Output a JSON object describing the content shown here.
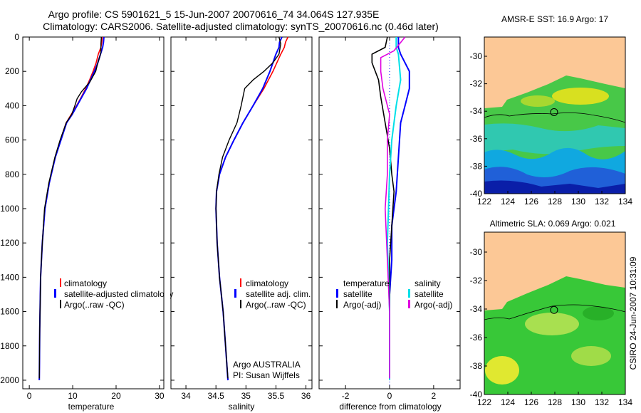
{
  "title_line1": "Argo profile: CS 5901621_5 15-Jun-2007 20070616_74 34.064S 127.935E",
  "title_line2": "Climatology: CARS2006. Satellite-adjusted climatology: synTS_20070616.nc (0.46d later)",
  "credit": "CSIRO 24-Jun-2007 10:31:09",
  "colors": {
    "climatology": "#ff0000",
    "satellite": "#0000ff",
    "argo": "#000000",
    "sat_sal": "#00e0e8",
    "argo_sal": "#e000e0",
    "land": "#fcc896"
  },
  "chart_data": [
    {
      "id": "temperature",
      "type": "line",
      "xlabel": "temperature",
      "xlim": [
        -1.5,
        31
      ],
      "ylim": [
        2050,
        0
      ],
      "xticks": [
        "0",
        "10",
        "20",
        "30"
      ],
      "yticks": [
        "0",
        "200",
        "400",
        "600",
        "800",
        "1000",
        "1200",
        "1400",
        "1600",
        "1800",
        "2000"
      ],
      "legend": [
        "climatology",
        "satellite-adjusted climatology",
        "Argo(..raw -QC)"
      ],
      "series": [
        {
          "name": "climatology",
          "x": [
            16.8,
            16.7,
            16.5,
            15.9,
            15.4,
            14.7,
            13.9,
            13.0,
            12.0,
            10.9,
            9.7,
            8.5,
            7.2,
            6.0,
            4.6,
            3.6,
            3.0,
            2.6,
            2.4,
            2.3
          ],
          "y": [
            0,
            30,
            60,
            100,
            150,
            200,
            250,
            300,
            350,
            400,
            450,
            500,
            600,
            700,
            850,
            1000,
            1200,
            1400,
            1700,
            2000
          ]
        },
        {
          "name": "satellite",
          "x": [
            17.2,
            17.1,
            16.9,
            16.4,
            15.8,
            15.0,
            14.1,
            13.2,
            12.1,
            11.0,
            9.9,
            8.6,
            7.3,
            6.0,
            4.6,
            3.6,
            3.0,
            2.6,
            2.4,
            2.3
          ],
          "y": [
            0,
            30,
            60,
            100,
            150,
            200,
            250,
            300,
            350,
            400,
            450,
            500,
            600,
            700,
            850,
            1000,
            1200,
            1400,
            1700,
            2000
          ]
        },
        {
          "name": "Argo",
          "x": [
            16.6,
            16.5,
            16.5,
            16.3,
            15.8,
            15.3,
            14.0,
            12.0,
            11.0,
            10.5,
            9.8,
            8.5,
            7.1,
            5.9,
            4.5,
            3.5,
            3.0,
            2.6,
            2.4,
            2.3
          ],
          "y": [
            0,
            40,
            90,
            110,
            150,
            200,
            260,
            320,
            360,
            400,
            450,
            500,
            600,
            700,
            850,
            1000,
            1200,
            1400,
            1700,
            1990
          ]
        }
      ]
    },
    {
      "id": "salinity",
      "type": "line",
      "xlabel": "salinity",
      "xlim": [
        33.75,
        36.1
      ],
      "ylim": [
        2050,
        0
      ],
      "xticks": [
        "34",
        "34.5",
        "35",
        "35.5",
        "36"
      ],
      "legend": [
        "climatology",
        "satellite adj. clim.",
        "Argo(..raw -QC)"
      ],
      "annotation": [
        "Argo AUSTRALIA",
        "PI: Susan Wijffels"
      ],
      "series": [
        {
          "name": "climatology",
          "x": [
            35.7,
            35.66,
            35.64,
            35.58,
            35.45,
            35.3,
            35.12,
            34.95,
            34.8,
            34.66,
            34.56,
            34.51,
            34.5,
            34.52,
            34.56,
            34.62,
            34.66,
            34.7
          ],
          "y": [
            0,
            30,
            60,
            100,
            200,
            300,
            400,
            500,
            600,
            700,
            800,
            900,
            1000,
            1200,
            1400,
            1600,
            1800,
            2000
          ]
        },
        {
          "name": "satellite",
          "x": [
            35.6,
            35.56,
            35.55,
            35.5,
            35.4,
            35.28,
            35.12,
            34.95,
            34.8,
            34.66,
            34.56,
            34.51,
            34.5,
            34.52,
            34.56,
            34.62,
            34.66,
            34.7
          ],
          "y": [
            0,
            30,
            60,
            100,
            200,
            300,
            400,
            500,
            600,
            700,
            800,
            900,
            1000,
            1200,
            1400,
            1600,
            1800,
            2000
          ]
        },
        {
          "name": "Argo",
          "x": [
            35.55,
            35.58,
            35.55,
            35.45,
            35.3,
            35.12,
            34.98,
            34.92,
            34.85,
            34.72,
            34.61,
            34.55,
            34.51,
            34.5,
            34.52,
            34.56,
            34.62,
            34.66,
            34.7
          ],
          "y": [
            0,
            40,
            100,
            150,
            200,
            250,
            300,
            400,
            500,
            600,
            700,
            800,
            900,
            1000,
            1200,
            1400,
            1600,
            1800,
            1990
          ]
        }
      ]
    },
    {
      "id": "difference",
      "type": "line",
      "xlabel": "difference from climatology",
      "xlim": [
        -3.2,
        3.2
      ],
      "ylim": [
        2050,
        0
      ],
      "xticks": [
        "-2",
        "0",
        "2"
      ],
      "legend_left_title": "temperature",
      "legend_right_title": "salinity",
      "legend": [
        "satellite",
        "Argo(-adj)",
        "satellite",
        "Argo(-adj)"
      ],
      "series": [
        {
          "name": "temperature satellite",
          "x": [
            0.4,
            0.4,
            0.5,
            0.9,
            0.9,
            0.7,
            0.5,
            0.4,
            0.3,
            0.1,
            0.1,
            0.0,
            0.0,
            0.0
          ],
          "y": [
            0,
            60,
            100,
            200,
            300,
            400,
            500,
            700,
            900,
            1100,
            1300,
            1500,
            1800,
            2000
          ]
        },
        {
          "name": "temperature Argo",
          "x": [
            -0.1,
            -0.2,
            -0.8,
            -0.8,
            -0.5,
            -0.4,
            -0.2,
            0.0,
            0.1,
            0.2,
            0.1,
            0.0,
            0.0,
            0.0
          ],
          "y": [
            0,
            60,
            100,
            150,
            250,
            350,
            500,
            650,
            800,
            900,
            1100,
            1300,
            1600,
            1990
          ]
        },
        {
          "name": "salinity satellite",
          "x": [
            0.3,
            0.3,
            0.4,
            0.5,
            0.3,
            0.1,
            0.0,
            -0.1,
            0.0,
            0.0
          ],
          "y": [
            0,
            60,
            100,
            250,
            400,
            600,
            800,
            1200,
            1600,
            2000
          ]
        },
        {
          "name": "salinity Argo",
          "x": [
            0.7,
            0.2,
            -0.4,
            -0.4,
            -0.3,
            0.0,
            -0.1,
            -0.1,
            -0.2,
            -0.1,
            0.0,
            0.0
          ],
          "y": [
            0,
            80,
            120,
            200,
            300,
            450,
            600,
            800,
            1000,
            1300,
            1600,
            1990
          ]
        }
      ]
    },
    {
      "id": "sst_map",
      "type": "heatmap",
      "title": "AMSR-E SST: 16.9 Argo: 17",
      "xlim": [
        122,
        134
      ],
      "ylim": [
        -40,
        -28.6
      ],
      "xticks": [
        "122",
        "124",
        "126",
        "128",
        "130",
        "132",
        "134"
      ],
      "yticks": [
        "-30",
        "-32",
        "-34",
        "-36",
        "-38",
        "-40"
      ],
      "profile_location": {
        "lon": 127.935,
        "lat": -34.064
      }
    },
    {
      "id": "sla_map",
      "type": "heatmap",
      "title": "Altimetric SLA: 0.069 Argo: 0.021",
      "xlim": [
        122,
        134
      ],
      "ylim": [
        -40,
        -28.6
      ],
      "xticks": [
        "122",
        "124",
        "126",
        "128",
        "130",
        "132",
        "134"
      ],
      "yticks": [
        "-30",
        "-32",
        "-34",
        "-36",
        "-38",
        "-40"
      ],
      "profile_location": {
        "lon": 127.935,
        "lat": -34.064
      }
    }
  ]
}
